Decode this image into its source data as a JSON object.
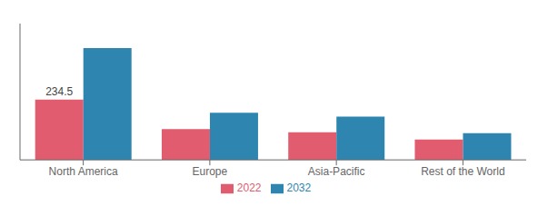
{
  "chart_data": {
    "type": "bar",
    "categories": [
      "North America",
      "Europe",
      "Asia-Pacific",
      "Rest of the World"
    ],
    "series": [
      {
        "name": "2022",
        "color": "#e05c6e",
        "values": [
          234.5,
          120.0,
          107.0,
          79.0
        ]
      },
      {
        "name": "2032",
        "color": "#2e86b0",
        "values": [
          435.0,
          183.0,
          168.0,
          104.0
        ]
      }
    ],
    "ylim": [
      0,
      530
    ],
    "annotations": [
      {
        "text": "234.5",
        "category": "North America",
        "series": "2022"
      }
    ],
    "tick_labels": "x",
    "grid": false,
    "legend": "bottom"
  }
}
